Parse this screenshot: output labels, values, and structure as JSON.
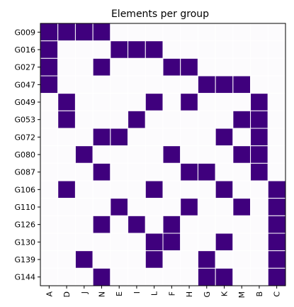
{
  "chart_data": {
    "type": "heatmap",
    "title": "Elements per group",
    "xlabel": "",
    "ylabel": "",
    "rows": [
      "G009",
      "G016",
      "G027",
      "G047",
      "G049",
      "G053",
      "G072",
      "G080",
      "G087",
      "G106",
      "G110",
      "G126",
      "G130",
      "G139",
      "G144"
    ],
    "columns": [
      "A",
      "D",
      "J",
      "N",
      "E",
      "I",
      "L",
      "F",
      "H",
      "G",
      "K",
      "M",
      "B",
      "C"
    ],
    "matrix": [
      [
        1,
        1,
        1,
        1,
        0,
        0,
        0,
        0,
        0,
        0,
        0,
        0,
        0,
        0
      ],
      [
        1,
        0,
        0,
        0,
        1,
        1,
        1,
        0,
        0,
        0,
        0,
        0,
        0,
        0
      ],
      [
        1,
        0,
        0,
        1,
        0,
        0,
        0,
        1,
        1,
        0,
        0,
        0,
        0,
        0
      ],
      [
        1,
        0,
        0,
        0,
        0,
        0,
        0,
        0,
        0,
        1,
        1,
        1,
        0,
        0
      ],
      [
        0,
        1,
        0,
        0,
        0,
        0,
        1,
        0,
        1,
        0,
        0,
        0,
        1,
        0
      ],
      [
        0,
        1,
        0,
        0,
        0,
        1,
        0,
        0,
        0,
        0,
        0,
        1,
        1,
        0
      ],
      [
        0,
        0,
        0,
        1,
        1,
        0,
        0,
        0,
        0,
        0,
        1,
        0,
        1,
        0
      ],
      [
        0,
        0,
        1,
        0,
        0,
        0,
        0,
        1,
        0,
        0,
        0,
        1,
        1,
        0
      ],
      [
        0,
        0,
        0,
        1,
        0,
        0,
        0,
        0,
        1,
        1,
        0,
        0,
        1,
        0
      ],
      [
        0,
        1,
        0,
        0,
        0,
        0,
        1,
        0,
        0,
        0,
        1,
        0,
        0,
        1
      ],
      [
        0,
        0,
        0,
        0,
        1,
        0,
        0,
        0,
        1,
        0,
        0,
        1,
        0,
        1
      ],
      [
        0,
        0,
        0,
        1,
        0,
        1,
        0,
        1,
        0,
        0,
        0,
        0,
        0,
        1
      ],
      [
        0,
        0,
        0,
        0,
        0,
        0,
        1,
        1,
        0,
        0,
        1,
        0,
        0,
        1
      ],
      [
        0,
        0,
        1,
        0,
        0,
        0,
        1,
        0,
        0,
        1,
        0,
        0,
        0,
        1
      ],
      [
        0,
        0,
        0,
        1,
        0,
        0,
        0,
        0,
        0,
        1,
        1,
        0,
        0,
        1
      ]
    ],
    "colors": {
      "present": "#3f007d",
      "absent": "#fcfbfd",
      "grid": "#ffffff"
    },
    "legend": "none",
    "grid": true
  }
}
